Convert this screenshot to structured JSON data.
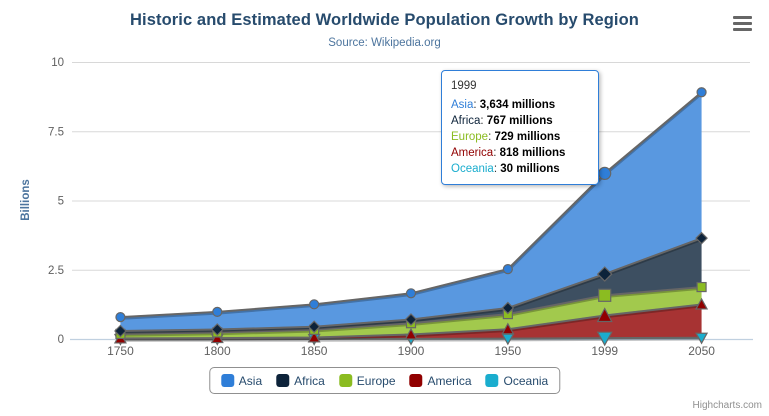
{
  "chart_data": {
    "type": "area",
    "stacking": "normal",
    "title": "Historic and Estimated Worldwide Population Growth by Region",
    "subtitle": "Source: Wikipedia.org",
    "categories": [
      "1750",
      "1800",
      "1850",
      "1900",
      "1950",
      "1999",
      "2050"
    ],
    "series": [
      {
        "name": "Asia",
        "color": "#2f7ed8",
        "marker": "circle",
        "values": [
          502,
          635,
          809,
          947,
          1402,
          3634,
          5268
        ]
      },
      {
        "name": "Africa",
        "color": "#0d233a",
        "marker": "diamond",
        "values": [
          106,
          107,
          111,
          133,
          221,
          767,
          1766
        ]
      },
      {
        "name": "Europe",
        "color": "#8bbc21",
        "marker": "square",
        "values": [
          163,
          203,
          276,
          408,
          547,
          729,
          628
        ]
      },
      {
        "name": "America",
        "color": "#910000",
        "marker": "triangle",
        "values": [
          18,
          31,
          54,
          156,
          339,
          818,
          1201
        ]
      },
      {
        "name": "Oceania",
        "color": "#1aadce",
        "marker": "triangle-down",
        "values": [
          2,
          2,
          2,
          6,
          13,
          30,
          46
        ]
      }
    ],
    "unit": "millions",
    "xlabel": "",
    "ylabel": "Billions",
    "ylim": [
      0,
      10
    ],
    "yticks": [
      0,
      2.5,
      5,
      7.5,
      10
    ],
    "ytick_labels": [
      "0",
      "2.5",
      "5",
      "7.5",
      "10"
    ],
    "grid": true,
    "legend_position": "bottom",
    "line_color": "#666666",
    "fill_opacity": 0.8,
    "hover_index": 5
  },
  "tooltip": {
    "header": "1999",
    "border_color": "#2f7ed8",
    "rows": [
      {
        "name": "Asia",
        "color": "#2f7ed8",
        "value": "3,634 millions"
      },
      {
        "name": "Africa",
        "color": "#0d233a",
        "value": "767 millions"
      },
      {
        "name": "Europe",
        "color": "#8bbc21",
        "value": "729 millions"
      },
      {
        "name": "America",
        "color": "#910000",
        "value": "818 millions"
      },
      {
        "name": "Oceania",
        "color": "#1aadce",
        "value": "30 millions"
      }
    ]
  },
  "legend": {
    "items": [
      {
        "label": "Asia",
        "color": "#2f7ed8"
      },
      {
        "label": "Africa",
        "color": "#0d233a"
      },
      {
        "label": "Europe",
        "color": "#8bbc21"
      },
      {
        "label": "America",
        "color": "#910000"
      },
      {
        "label": "Oceania",
        "color": "#1aadce"
      }
    ]
  },
  "credits": {
    "label": "Highcharts.com"
  },
  "axes": {
    "grid_color": "#d8d8d8",
    "axis_line_color": "#c0d0e0",
    "x_labels_color": "#606060",
    "y_labels_color": "#606060",
    "y_title_color": "#4d759e"
  }
}
